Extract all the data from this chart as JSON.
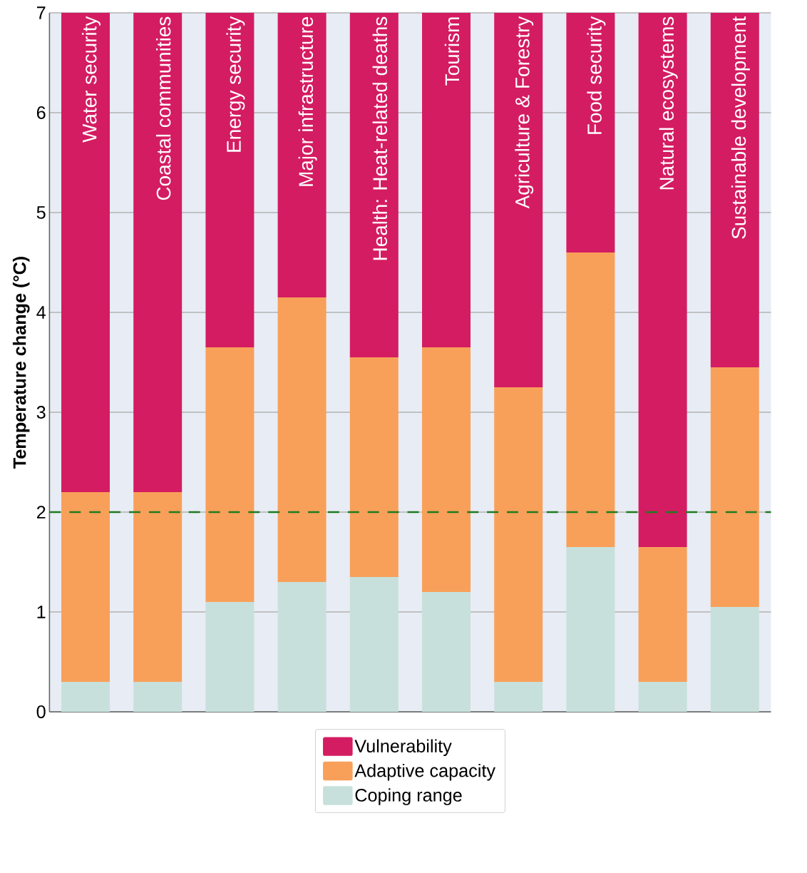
{
  "chart_data": {
    "type": "bar",
    "stacked": true,
    "ylabel": "Temperature change (°C)",
    "categories": [
      "Water security",
      "Coastal communities",
      "Energy security",
      "Major infrastructure",
      "Health: Heat-related deaths",
      "Tourism",
      "Agriculture & Forestry",
      "Food security",
      "Natural ecosystems",
      "Sustainable development"
    ],
    "series": [
      {
        "name": "Coping range",
        "color": "#c8e0dc",
        "values": [
          0.3,
          0.3,
          1.1,
          1.3,
          1.35,
          1.2,
          0.3,
          1.65,
          0.3,
          1.05
        ]
      },
      {
        "name": "Adaptive capacity",
        "color": "#f8a05a",
        "values": [
          1.9,
          1.9,
          2.55,
          2.85,
          2.2,
          2.45,
          2.95,
          2.95,
          1.35,
          2.4
        ]
      },
      {
        "name": "Vulnerability",
        "color": "#d41c62",
        "values": [
          4.8,
          4.8,
          3.35,
          2.85,
          3.45,
          3.35,
          3.75,
          2.4,
          5.35,
          3.55
        ]
      }
    ],
    "ylim": [
      0,
      7
    ],
    "yticks": [
      0,
      1,
      2,
      3,
      4,
      5,
      6,
      7
    ],
    "grid": "y",
    "legend": "bottom",
    "ref_lines": [
      {
        "axis": "y",
        "value": 2,
        "color": "#1e7b1e",
        "line_style": "dashed"
      }
    ]
  }
}
